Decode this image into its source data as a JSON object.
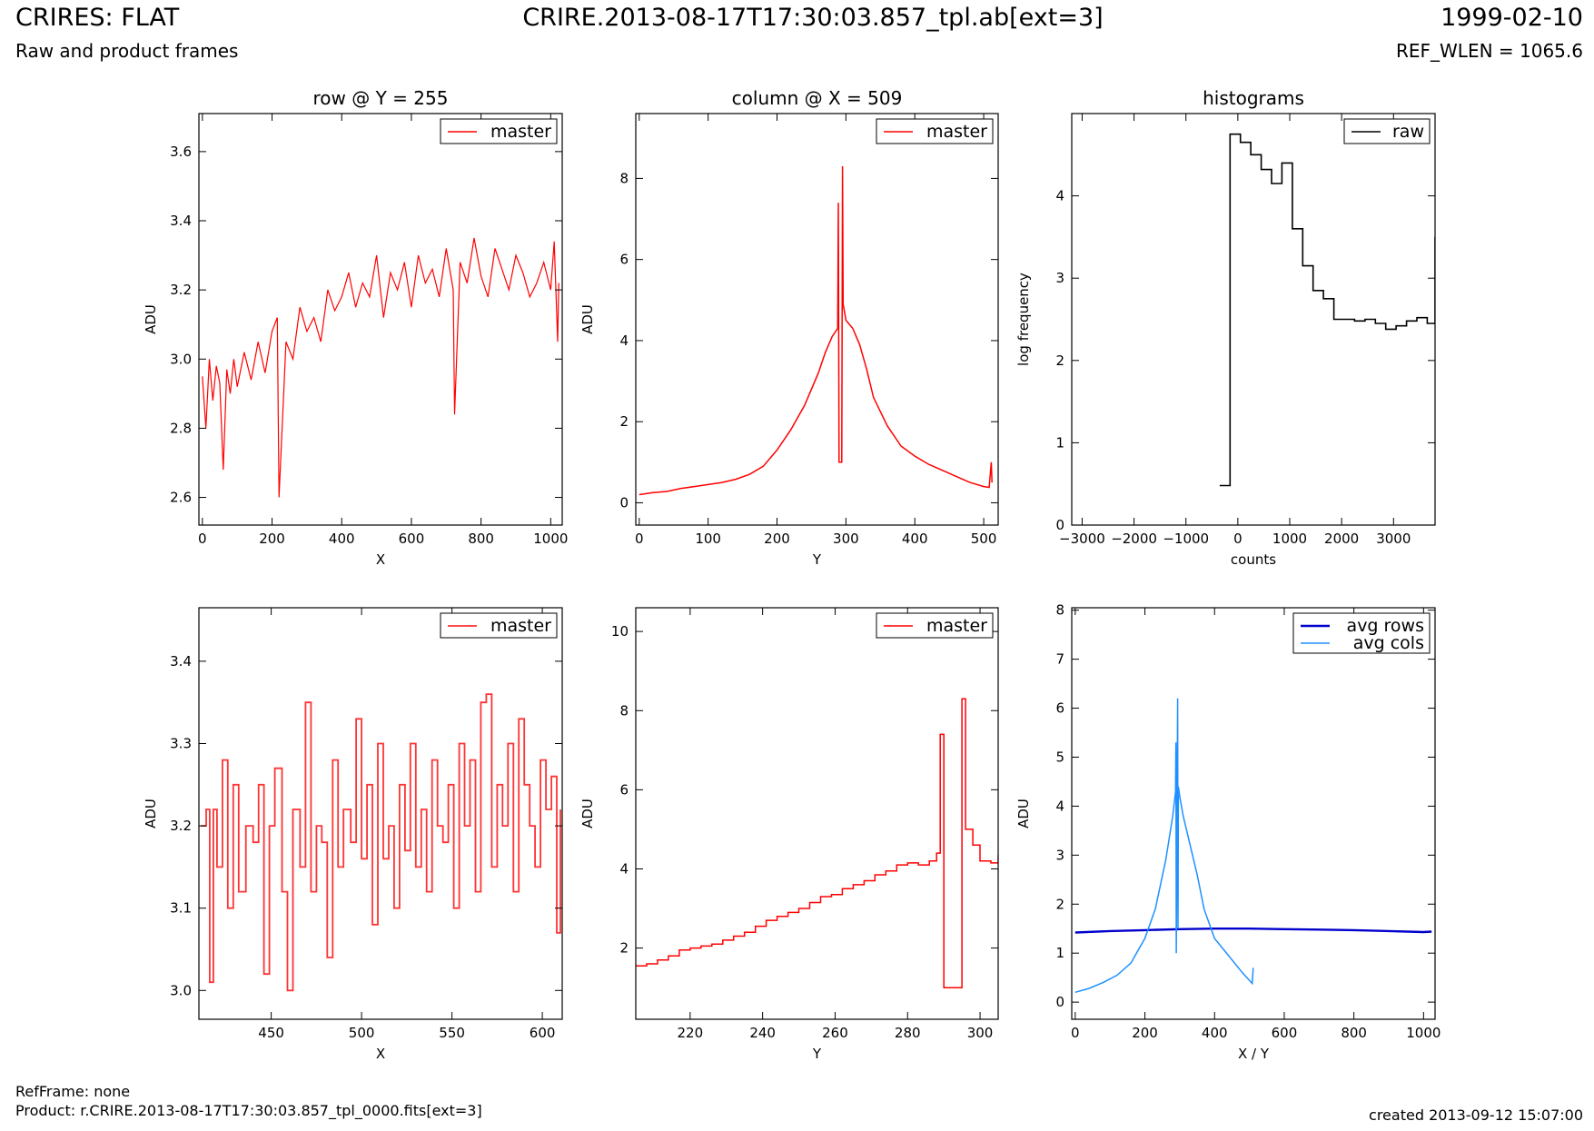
{
  "header": {
    "title": "CRIRES: FLAT",
    "subtitle": "Raw and product frames",
    "file": "CRIRE.2013-08-17T17:30:03.857_tpl.ab[ext=3]",
    "date": "1999-02-10",
    "ref_wlen": "REF_WLEN = 1065.6"
  },
  "footer": {
    "ref_frame": "RefFrame: none",
    "product": "Product: r.CRIRE.2013-08-17T17:30:03.857_tpl_0000.fits[ext=3]",
    "created": "created 2013-09-12 15:07:00"
  },
  "colors": {
    "master": "#ff0000",
    "raw": "#000000",
    "avg_rows": "#0000cc",
    "avg_cols": "#1e90ff"
  },
  "chart_data": [
    {
      "id": "p1",
      "type": "line",
      "title": "row @ Y = 255",
      "xlabel": "X",
      "ylabel": "ADU",
      "xlim": [
        -10,
        1033
      ],
      "ylim": [
        2.52,
        3.71
      ],
      "xticks": [
        0,
        200,
        400,
        600,
        800,
        1000
      ],
      "yticks": [
        2.6,
        2.8,
        3.0,
        3.2,
        3.4,
        3.6
      ],
      "legend": "top-right",
      "series": [
        {
          "name": "master",
          "color": "#ff0000",
          "width": 1.2,
          "step": false,
          "x": [
            0,
            10,
            20,
            30,
            40,
            50,
            60,
            70,
            80,
            90,
            100,
            120,
            140,
            160,
            180,
            200,
            215,
            220,
            240,
            260,
            280,
            300,
            320,
            340,
            360,
            380,
            400,
            420,
            440,
            460,
            480,
            500,
            520,
            540,
            560,
            580,
            600,
            620,
            640,
            660,
            680,
            700,
            720,
            724,
            740,
            760,
            780,
            800,
            820,
            840,
            860,
            880,
            900,
            920,
            940,
            960,
            980,
            1000,
            1010,
            1020,
            1023
          ],
          "y": [
            2.95,
            2.8,
            3.0,
            2.88,
            2.98,
            2.93,
            2.68,
            2.97,
            2.9,
            3.0,
            2.92,
            3.02,
            2.94,
            3.05,
            2.96,
            3.08,
            3.12,
            2.6,
            3.05,
            3.0,
            3.15,
            3.08,
            3.12,
            3.05,
            3.2,
            3.14,
            3.18,
            3.25,
            3.15,
            3.22,
            3.18,
            3.3,
            3.12,
            3.25,
            3.2,
            3.28,
            3.15,
            3.3,
            3.22,
            3.26,
            3.18,
            3.32,
            3.2,
            2.84,
            3.28,
            3.22,
            3.35,
            3.24,
            3.18,
            3.32,
            3.26,
            3.2,
            3.3,
            3.25,
            3.18,
            3.22,
            3.28,
            3.2,
            3.34,
            3.05,
            3.22
          ]
        }
      ]
    },
    {
      "id": "p2",
      "type": "line",
      "title": "column @ X = 509",
      "xlabel": "Y",
      "ylabel": "ADU",
      "xlim": [
        -5,
        521
      ],
      "ylim": [
        -0.55,
        9.6
      ],
      "xticks": [
        0,
        100,
        200,
        300,
        400,
        500
      ],
      "yticks": [
        0,
        2,
        4,
        6,
        8
      ],
      "legend": "top-right",
      "series": [
        {
          "name": "master",
          "color": "#ff0000",
          "width": 1.5,
          "step": false,
          "x": [
            0,
            20,
            40,
            60,
            80,
            100,
            120,
            140,
            160,
            180,
            200,
            220,
            240,
            260,
            270,
            280,
            288,
            289,
            290,
            294,
            295,
            296,
            300,
            310,
            320,
            330,
            340,
            360,
            380,
            400,
            420,
            440,
            460,
            480,
            500,
            508,
            511,
            512
          ],
          "y": [
            0.2,
            0.25,
            0.28,
            0.35,
            0.4,
            0.45,
            0.5,
            0.58,
            0.7,
            0.9,
            1.3,
            1.8,
            2.4,
            3.2,
            3.7,
            4.1,
            4.3,
            7.4,
            1.0,
            1.0,
            8.3,
            4.9,
            4.5,
            4.3,
            3.9,
            3.3,
            2.6,
            1.9,
            1.4,
            1.15,
            0.95,
            0.8,
            0.65,
            0.5,
            0.4,
            0.38,
            1.0,
            0.5
          ]
        }
      ]
    },
    {
      "id": "p3",
      "type": "line",
      "title": "histograms",
      "xlabel": "counts",
      "ylabel": "log frequency",
      "xlim": [
        -3200,
        3800
      ],
      "ylim": [
        0,
        5.0
      ],
      "xticks": [
        -3000,
        -2000,
        -1000,
        0,
        1000,
        2000,
        3000
      ],
      "xticklabels": [
        "−3000",
        "−2000",
        "−1000",
        "0",
        "1000",
        "2000",
        "3000"
      ],
      "yticks": [
        0,
        1,
        2,
        3,
        4
      ],
      "legend": "top-right",
      "series": [
        {
          "name": "raw",
          "color": "#000000",
          "width": 1.6,
          "step": true,
          "x": [
            -350,
            -150,
            50,
            250,
            450,
            650,
            850,
            1050,
            1250,
            1450,
            1650,
            1850,
            2050,
            2250,
            2450,
            2650,
            2850,
            3050,
            3250,
            3450,
            3650,
            3800
          ],
          "y": [
            0.48,
            4.75,
            4.65,
            4.5,
            4.32,
            4.15,
            4.4,
            3.6,
            3.15,
            2.85,
            2.75,
            2.5,
            2.5,
            2.48,
            2.5,
            2.45,
            2.38,
            2.42,
            2.48,
            2.52,
            2.45,
            3.5
          ]
        }
      ]
    },
    {
      "id": "p4",
      "type": "line",
      "title": "",
      "xlabel": "X",
      "ylabel": "ADU",
      "xlim": [
        410,
        611
      ],
      "ylim": [
        2.965,
        3.465
      ],
      "xticks": [
        450,
        500,
        550,
        600
      ],
      "yticks": [
        3.0,
        3.1,
        3.2,
        3.3,
        3.4
      ],
      "legend": "top-right",
      "series": [
        {
          "name": "master",
          "color": "#ff3333",
          "width": 1.8,
          "step": true,
          "x": [
            411,
            414,
            416,
            418,
            420,
            423,
            426,
            429,
            432,
            436,
            440,
            443,
            446,
            449,
            452,
            456,
            459,
            462,
            466,
            469,
            472,
            475,
            478,
            481,
            484,
            487,
            490,
            494,
            497,
            500,
            503,
            506,
            509,
            512,
            515,
            518,
            521,
            524,
            527,
            530,
            533,
            536,
            539,
            542,
            545,
            548,
            551,
            554,
            557,
            560,
            563,
            566,
            569,
            572,
            575,
            578,
            581,
            584,
            587,
            590,
            593,
            596,
            599,
            602,
            605,
            608,
            610
          ],
          "y": [
            3.2,
            3.22,
            3.01,
            3.22,
            3.15,
            3.28,
            3.1,
            3.25,
            3.12,
            3.2,
            3.18,
            3.25,
            3.02,
            3.2,
            3.27,
            3.12,
            3.0,
            3.22,
            3.15,
            3.35,
            3.12,
            3.2,
            3.18,
            3.04,
            3.28,
            3.15,
            3.22,
            3.18,
            3.33,
            3.16,
            3.25,
            3.08,
            3.3,
            3.16,
            3.2,
            3.1,
            3.25,
            3.17,
            3.3,
            3.15,
            3.22,
            3.12,
            3.28,
            3.2,
            3.18,
            3.25,
            3.1,
            3.3,
            3.2,
            3.28,
            3.12,
            3.35,
            3.36,
            3.15,
            3.25,
            3.2,
            3.3,
            3.12,
            3.33,
            3.25,
            3.2,
            3.15,
            3.28,
            3.22,
            3.26,
            3.07,
            3.22
          ]
        }
      ]
    },
    {
      "id": "p5",
      "type": "line",
      "title": "",
      "xlabel": "Y",
      "ylabel": "ADU",
      "xlim": [
        205,
        305
      ],
      "ylim": [
        0.2,
        10.6
      ],
      "xticks": [
        220,
        240,
        260,
        280,
        300
      ],
      "yticks": [
        2,
        4,
        6,
        8,
        10
      ],
      "legend": "top-right",
      "series": [
        {
          "name": "master",
          "color": "#ff0000",
          "width": 1.5,
          "step": true,
          "x": [
            205,
            208,
            211,
            214,
            217,
            220,
            223,
            226,
            229,
            232,
            235,
            238,
            241,
            244,
            247,
            250,
            253,
            256,
            259,
            262,
            265,
            268,
            271,
            274,
            277,
            280,
            283,
            286,
            288,
            289,
            290,
            294,
            295,
            296,
            298,
            300,
            303,
            305
          ],
          "y": [
            1.55,
            1.6,
            1.7,
            1.8,
            1.95,
            2.0,
            2.05,
            2.1,
            2.2,
            2.3,
            2.4,
            2.55,
            2.7,
            2.8,
            2.9,
            3.0,
            3.15,
            3.3,
            3.35,
            3.5,
            3.6,
            3.7,
            3.85,
            3.95,
            4.1,
            4.15,
            4.1,
            4.2,
            4.4,
            7.4,
            1.0,
            1.0,
            8.3,
            5.0,
            4.6,
            4.2,
            4.15,
            4.35
          ]
        }
      ]
    },
    {
      "id": "p6",
      "type": "line",
      "title": "",
      "xlabel": "X / Y",
      "ylabel": "ADU",
      "xlim": [
        -10,
        1033
      ],
      "ylim": [
        -0.35,
        8.05
      ],
      "xticks": [
        0,
        200,
        400,
        600,
        800,
        1000
      ],
      "yticks": [
        0,
        1,
        2,
        3,
        4,
        5,
        6,
        7,
        8
      ],
      "legend": "top-right",
      "series": [
        {
          "name": "avg rows",
          "color": "#0000cc",
          "width": 2.4,
          "step": false,
          "x": [
            0,
            100,
            200,
            300,
            400,
            500,
            600,
            700,
            800,
            900,
            1000,
            1023
          ],
          "y": [
            1.42,
            1.45,
            1.47,
            1.49,
            1.5,
            1.5,
            1.49,
            1.48,
            1.47,
            1.45,
            1.43,
            1.44
          ]
        },
        {
          "name": "avg cols",
          "color": "#1e90ff",
          "width": 1.5,
          "step": false,
          "x": [
            0,
            40,
            80,
            120,
            160,
            200,
            230,
            260,
            280,
            288,
            289,
            290,
            294,
            295,
            296,
            300,
            310,
            330,
            350,
            370,
            400,
            440,
            480,
            508,
            511
          ],
          "y": [
            0.2,
            0.28,
            0.4,
            0.55,
            0.8,
            1.3,
            1.9,
            2.9,
            3.8,
            4.3,
            5.3,
            1.0,
            6.2,
            1.5,
            4.4,
            4.2,
            3.8,
            3.2,
            2.6,
            1.9,
            1.3,
            0.95,
            0.6,
            0.38,
            0.7
          ]
        }
      ]
    }
  ]
}
